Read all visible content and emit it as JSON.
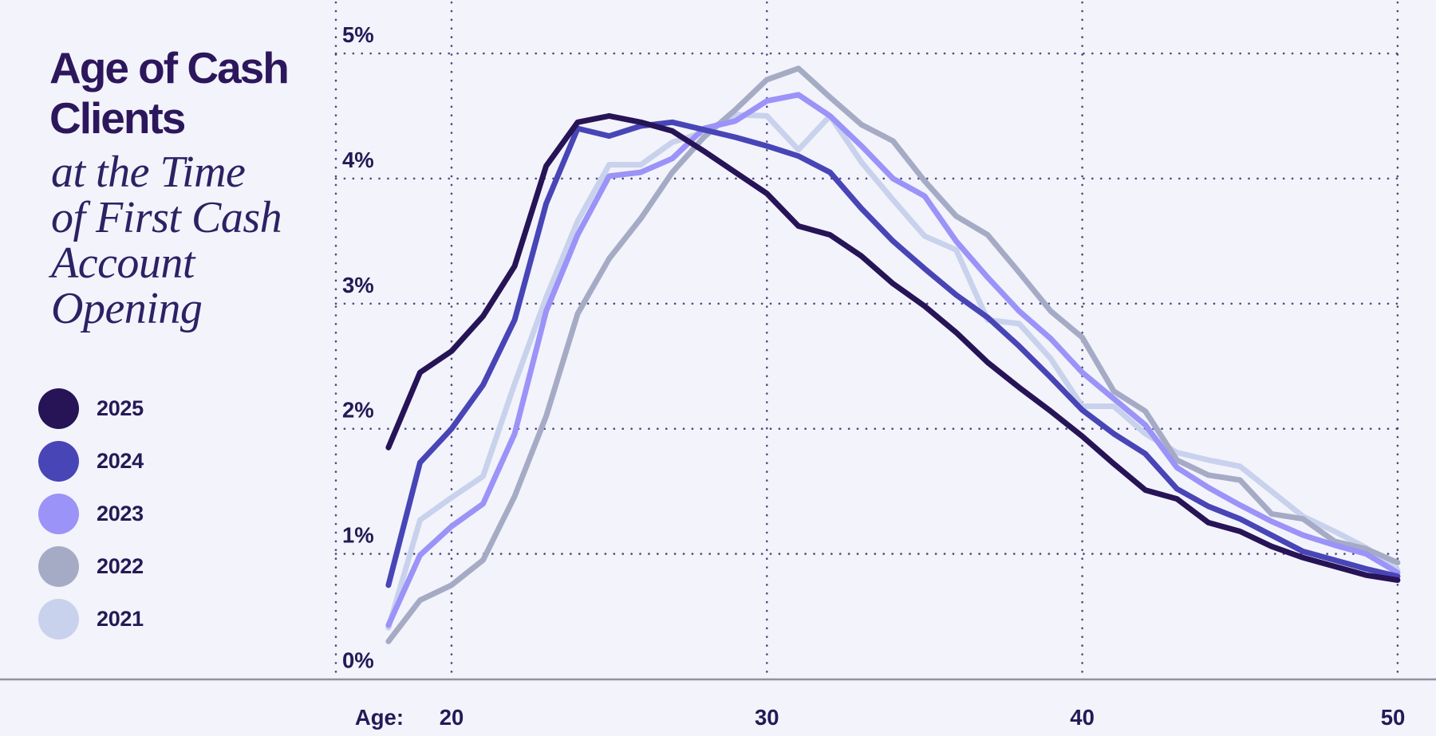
{
  "title": {
    "line1": "Age of Cash",
    "line2": "Clients"
  },
  "subtitle_lines": [
    "at the Time",
    "of First Cash",
    "Account",
    "Opening"
  ],
  "legend": [
    {
      "year": "2025",
      "color": "#261457"
    },
    {
      "year": "2024",
      "color": "#4845b7"
    },
    {
      "year": "2023",
      "color": "#9b93f8"
    },
    {
      "year": "2022",
      "color": "#a6abc5"
    },
    {
      "year": "2021",
      "color": "#c9d2ec"
    }
  ],
  "axes": {
    "x_title": "Age:",
    "x_ticks": [
      "20",
      "30",
      "40",
      "50"
    ],
    "y_ticks": [
      "0%",
      "1%",
      "2%",
      "3%",
      "4%",
      "5%"
    ]
  },
  "colors": {
    "background": "#f3f3fb",
    "text": "#241a56",
    "grid_dots": "#332c66",
    "axis_line": "#94929f"
  },
  "chart_data": {
    "type": "line",
    "title": "Age of Cash Clients at the Time of First Cash Account Opening",
    "xlabel": "Age",
    "ylabel": "",
    "ylim": [
      0,
      5.3
    ],
    "xlim": [
      16.3,
      50.3
    ],
    "grid": true,
    "legend_position": "left",
    "y_tick_format": "percent",
    "x": [
      18,
      19,
      20,
      21,
      22,
      23,
      24,
      25,
      26,
      27,
      28,
      29,
      30,
      31,
      32,
      33,
      34,
      35,
      36,
      37,
      38,
      39,
      40,
      41,
      42,
      43,
      44,
      45,
      46,
      47,
      48,
      49,
      50
    ],
    "series": [
      {
        "name": "2025",
        "color": "#261457",
        "values": [
          1.85,
          2.45,
          2.62,
          2.9,
          3.3,
          4.1,
          4.45,
          4.5,
          4.45,
          4.38,
          4.22,
          4.05,
          3.88,
          3.62,
          3.55,
          3.38,
          3.16,
          2.98,
          2.77,
          2.53,
          2.33,
          2.14,
          1.94,
          1.72,
          1.51,
          1.44,
          1.25,
          1.18,
          1.06,
          0.97,
          0.9,
          0.83,
          0.79
        ]
      },
      {
        "name": "2024",
        "color": "#4845b7",
        "values": [
          0.75,
          1.73,
          2.0,
          2.35,
          2.87,
          3.8,
          4.4,
          4.34,
          4.42,
          4.45,
          4.39,
          4.33,
          4.26,
          4.18,
          4.05,
          3.76,
          3.5,
          3.28,
          3.07,
          2.89,
          2.66,
          2.41,
          2.15,
          1.96,
          1.8,
          1.52,
          1.38,
          1.28,
          1.15,
          1.02,
          0.95,
          0.88,
          0.82
        ]
      },
      {
        "name": "2023",
        "color": "#9b93f8",
        "values": [
          0.43,
          0.99,
          1.22,
          1.4,
          1.96,
          2.94,
          3.55,
          4.02,
          4.05,
          4.16,
          4.4,
          4.46,
          4.62,
          4.67,
          4.5,
          4.26,
          4.0,
          3.86,
          3.5,
          3.21,
          2.94,
          2.72,
          2.45,
          2.24,
          2.03,
          1.69,
          1.53,
          1.39,
          1.26,
          1.15,
          1.07,
          1.0,
          0.85
        ]
      },
      {
        "name": "2022",
        "color": "#a6abc5",
        "values": [
          0.3,
          0.63,
          0.75,
          0.95,
          1.46,
          2.1,
          2.92,
          3.36,
          3.68,
          4.05,
          4.33,
          4.55,
          4.79,
          4.88,
          4.65,
          4.43,
          4.3,
          3.98,
          3.7,
          3.55,
          3.25,
          2.94,
          2.73,
          2.3,
          2.14,
          1.75,
          1.63,
          1.59,
          1.32,
          1.28,
          1.1,
          1.04,
          0.93
        ]
      },
      {
        "name": "2021",
        "color": "#c9d2ec",
        "values": [
          0.41,
          1.27,
          1.45,
          1.62,
          2.36,
          3.05,
          3.66,
          4.11,
          4.11,
          4.29,
          4.37,
          4.51,
          4.5,
          4.23,
          4.5,
          4.13,
          3.83,
          3.54,
          3.43,
          2.87,
          2.84,
          2.56,
          2.18,
          2.18,
          1.96,
          1.81,
          1.75,
          1.7,
          1.5,
          1.3,
          1.18,
          1.05,
          0.87
        ]
      }
    ]
  }
}
